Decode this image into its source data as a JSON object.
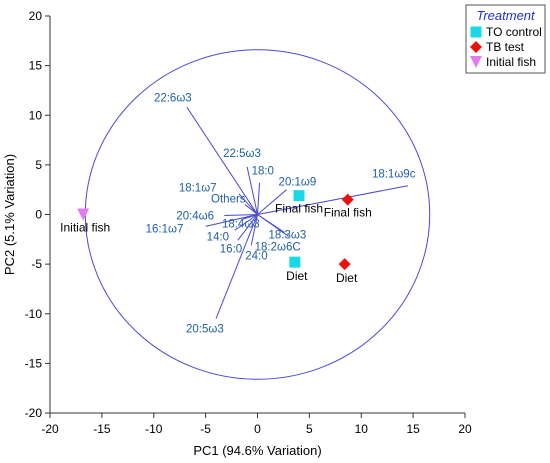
{
  "chart_data": {
    "type": "scatter",
    "xlabel": "PC1 (94.6% Variation)",
    "ylabel": "PC2 (5.1% Variation)",
    "xlim": [
      -20,
      20
    ],
    "ylim": [
      -20,
      20
    ],
    "xticks": [
      "-20",
      "-15",
      "-10",
      "-5",
      "0",
      "5",
      "10",
      "15",
      "20"
    ],
    "yticks": [
      "20",
      "15",
      "10",
      "5",
      "0",
      "-5",
      "-10",
      "-15",
      "-20"
    ],
    "xtick_values": [
      -20,
      -15,
      -10,
      -5,
      0,
      5,
      10,
      15,
      20
    ],
    "ytick_values": [
      20,
      15,
      10,
      5,
      0,
      -5,
      -10,
      -15,
      -20
    ],
    "grid": false,
    "legend": {
      "title": "Treatment",
      "placement": "top-right",
      "entries": [
        {
          "name": "TO control",
          "marker": "square",
          "color": "#19d9e6"
        },
        {
          "name": "TB test",
          "marker": "diamond",
          "color": "#e8140c"
        },
        {
          "name": "Initial fish",
          "marker": "triangle-down",
          "color": "#e07cf0"
        }
      ]
    },
    "circle": {
      "center": [
        0,
        0
      ],
      "radius": 16.6,
      "color": "#4a4ad0"
    },
    "series": [
      {
        "name": "TO control",
        "marker": "square",
        "color": "#19d9e6",
        "points": [
          {
            "x": 4.0,
            "y": 1.9,
            "label": "Final fish"
          },
          {
            "x": 3.6,
            "y": -4.8,
            "label": "Diet"
          }
        ]
      },
      {
        "name": "TB test",
        "marker": "diamond",
        "color": "#e8140c",
        "points": [
          {
            "x": 8.7,
            "y": 1.5,
            "label": "Final fish"
          },
          {
            "x": 8.4,
            "y": -5.0,
            "label": "Diet"
          }
        ]
      },
      {
        "name": "Initial fish",
        "marker": "triangle-down",
        "color": "#e07cf0",
        "points": [
          {
            "x": -16.8,
            "y": 0.0,
            "label": "Initial fish"
          }
        ]
      }
    ],
    "vectors": [
      {
        "label": "22:6ω3",
        "x": -6.8,
        "y": 10.8
      },
      {
        "label": "22:5ω3",
        "x": -1.0,
        "y": 4.8
      },
      {
        "label": "18:0",
        "x": 0.2,
        "y": 3.2
      },
      {
        "label": "20:1ω9",
        "x": 2.8,
        "y": 2.5
      },
      {
        "label": "18:1ω7",
        "x": -1.8,
        "y": 2.1
      },
      {
        "label": "Others",
        "x": -1.2,
        "y": 1.0
      },
      {
        "label": "18:1ω9c",
        "x": 14.5,
        "y": 2.9
      },
      {
        "label": "20:4ω6",
        "x": -3.2,
        "y": -0.1
      },
      {
        "label": "16:1ω7",
        "x": -5.0,
        "y": -1.2
      },
      {
        "label": "18:4ω3",
        "x": -1.5,
        "y": -0.5
      },
      {
        "label": "14:0",
        "x": -2.2,
        "y": -1.6
      },
      {
        "label": "16:0",
        "x": -1.9,
        "y": -2.6
      },
      {
        "label": "24:0",
        "x": -0.6,
        "y": -3.1
      },
      {
        "label": "18:3ω3",
        "x": 2.6,
        "y": -1.8
      },
      {
        "label": "18:2ω6C",
        "x": 3.0,
        "y": -2.2
      },
      {
        "label": "20:5ω3",
        "x": -4.0,
        "y": -10.5
      }
    ]
  }
}
